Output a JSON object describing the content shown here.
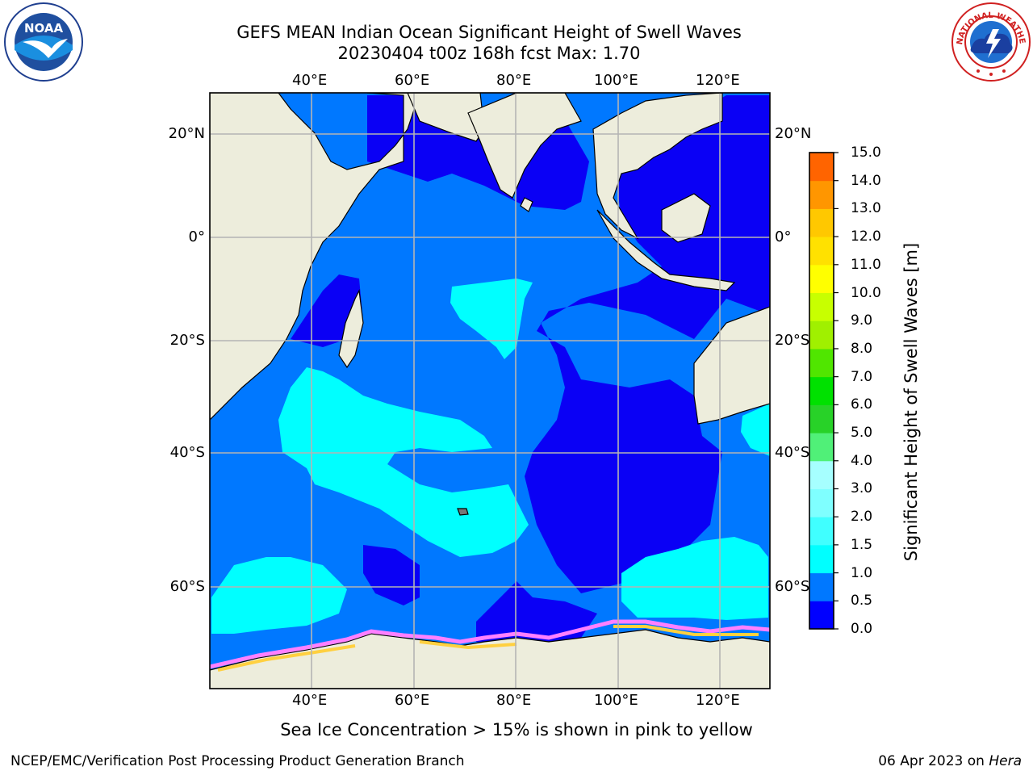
{
  "header": {
    "title_line1": "GEFS MEAN Indian Ocean Significant Height of Swell Waves",
    "title_line2": "20230404 t00z 168h fcst   Max: 1.70"
  },
  "logos": {
    "left": {
      "icon": "noaa-logo",
      "text": "NOAA"
    },
    "right": {
      "icon": "national-weather-service-logo",
      "text": "NATIONAL WEATHER SERVICE"
    }
  },
  "map": {
    "lon_labels": [
      "40°E",
      "60°E",
      "80°E",
      "100°E",
      "120°E"
    ],
    "lat_labels_left": [
      "20°N",
      "0°",
      "20°S",
      "40°S",
      "60°S"
    ],
    "lat_labels_right": [
      "20°N",
      "0°",
      "20°S",
      "40°S",
      "60°S"
    ],
    "colors": {
      "ocean_dark": "#0a00f5",
      "ocean_mid": "#0078ff",
      "ocean_light": "#00ffff",
      "land": "#ededdc",
      "grid": "#b4b4b4",
      "ice": "#ff80ff"
    }
  },
  "colorbar": {
    "title": "Significant Height of Swell Waves [m]",
    "ticks": [
      "15.0",
      "14.0",
      "13.0",
      "12.0",
      "11.0",
      "10.0",
      "9.0",
      "8.0",
      "7.0",
      "6.0",
      "5.0",
      "4.0",
      "3.0",
      "2.0",
      "1.5",
      "1.0",
      "0.5",
      "0.0"
    ],
    "colors_bottom_to_top": [
      "#0000ff",
      "#0078ff",
      "#00ffff",
      "#40ffff",
      "#7fffff",
      "#a6ffff",
      "#50f078",
      "#28d228",
      "#00e100",
      "#50e600",
      "#a0f000",
      "#c8ff00",
      "#ffff00",
      "#ffe100",
      "#ffc800",
      "#ff9600",
      "#ff6400",
      "#ff3200",
      "#ff0000"
    ]
  },
  "footer": {
    "caption": "Sea Ice Concentration > 15% is shown in pink to yellow",
    "left": "NCEP/EMC/Verification Post Processing Product Generation Branch",
    "right_prefix": "06 Apr 2023 on ",
    "right_emph": "Hera"
  }
}
